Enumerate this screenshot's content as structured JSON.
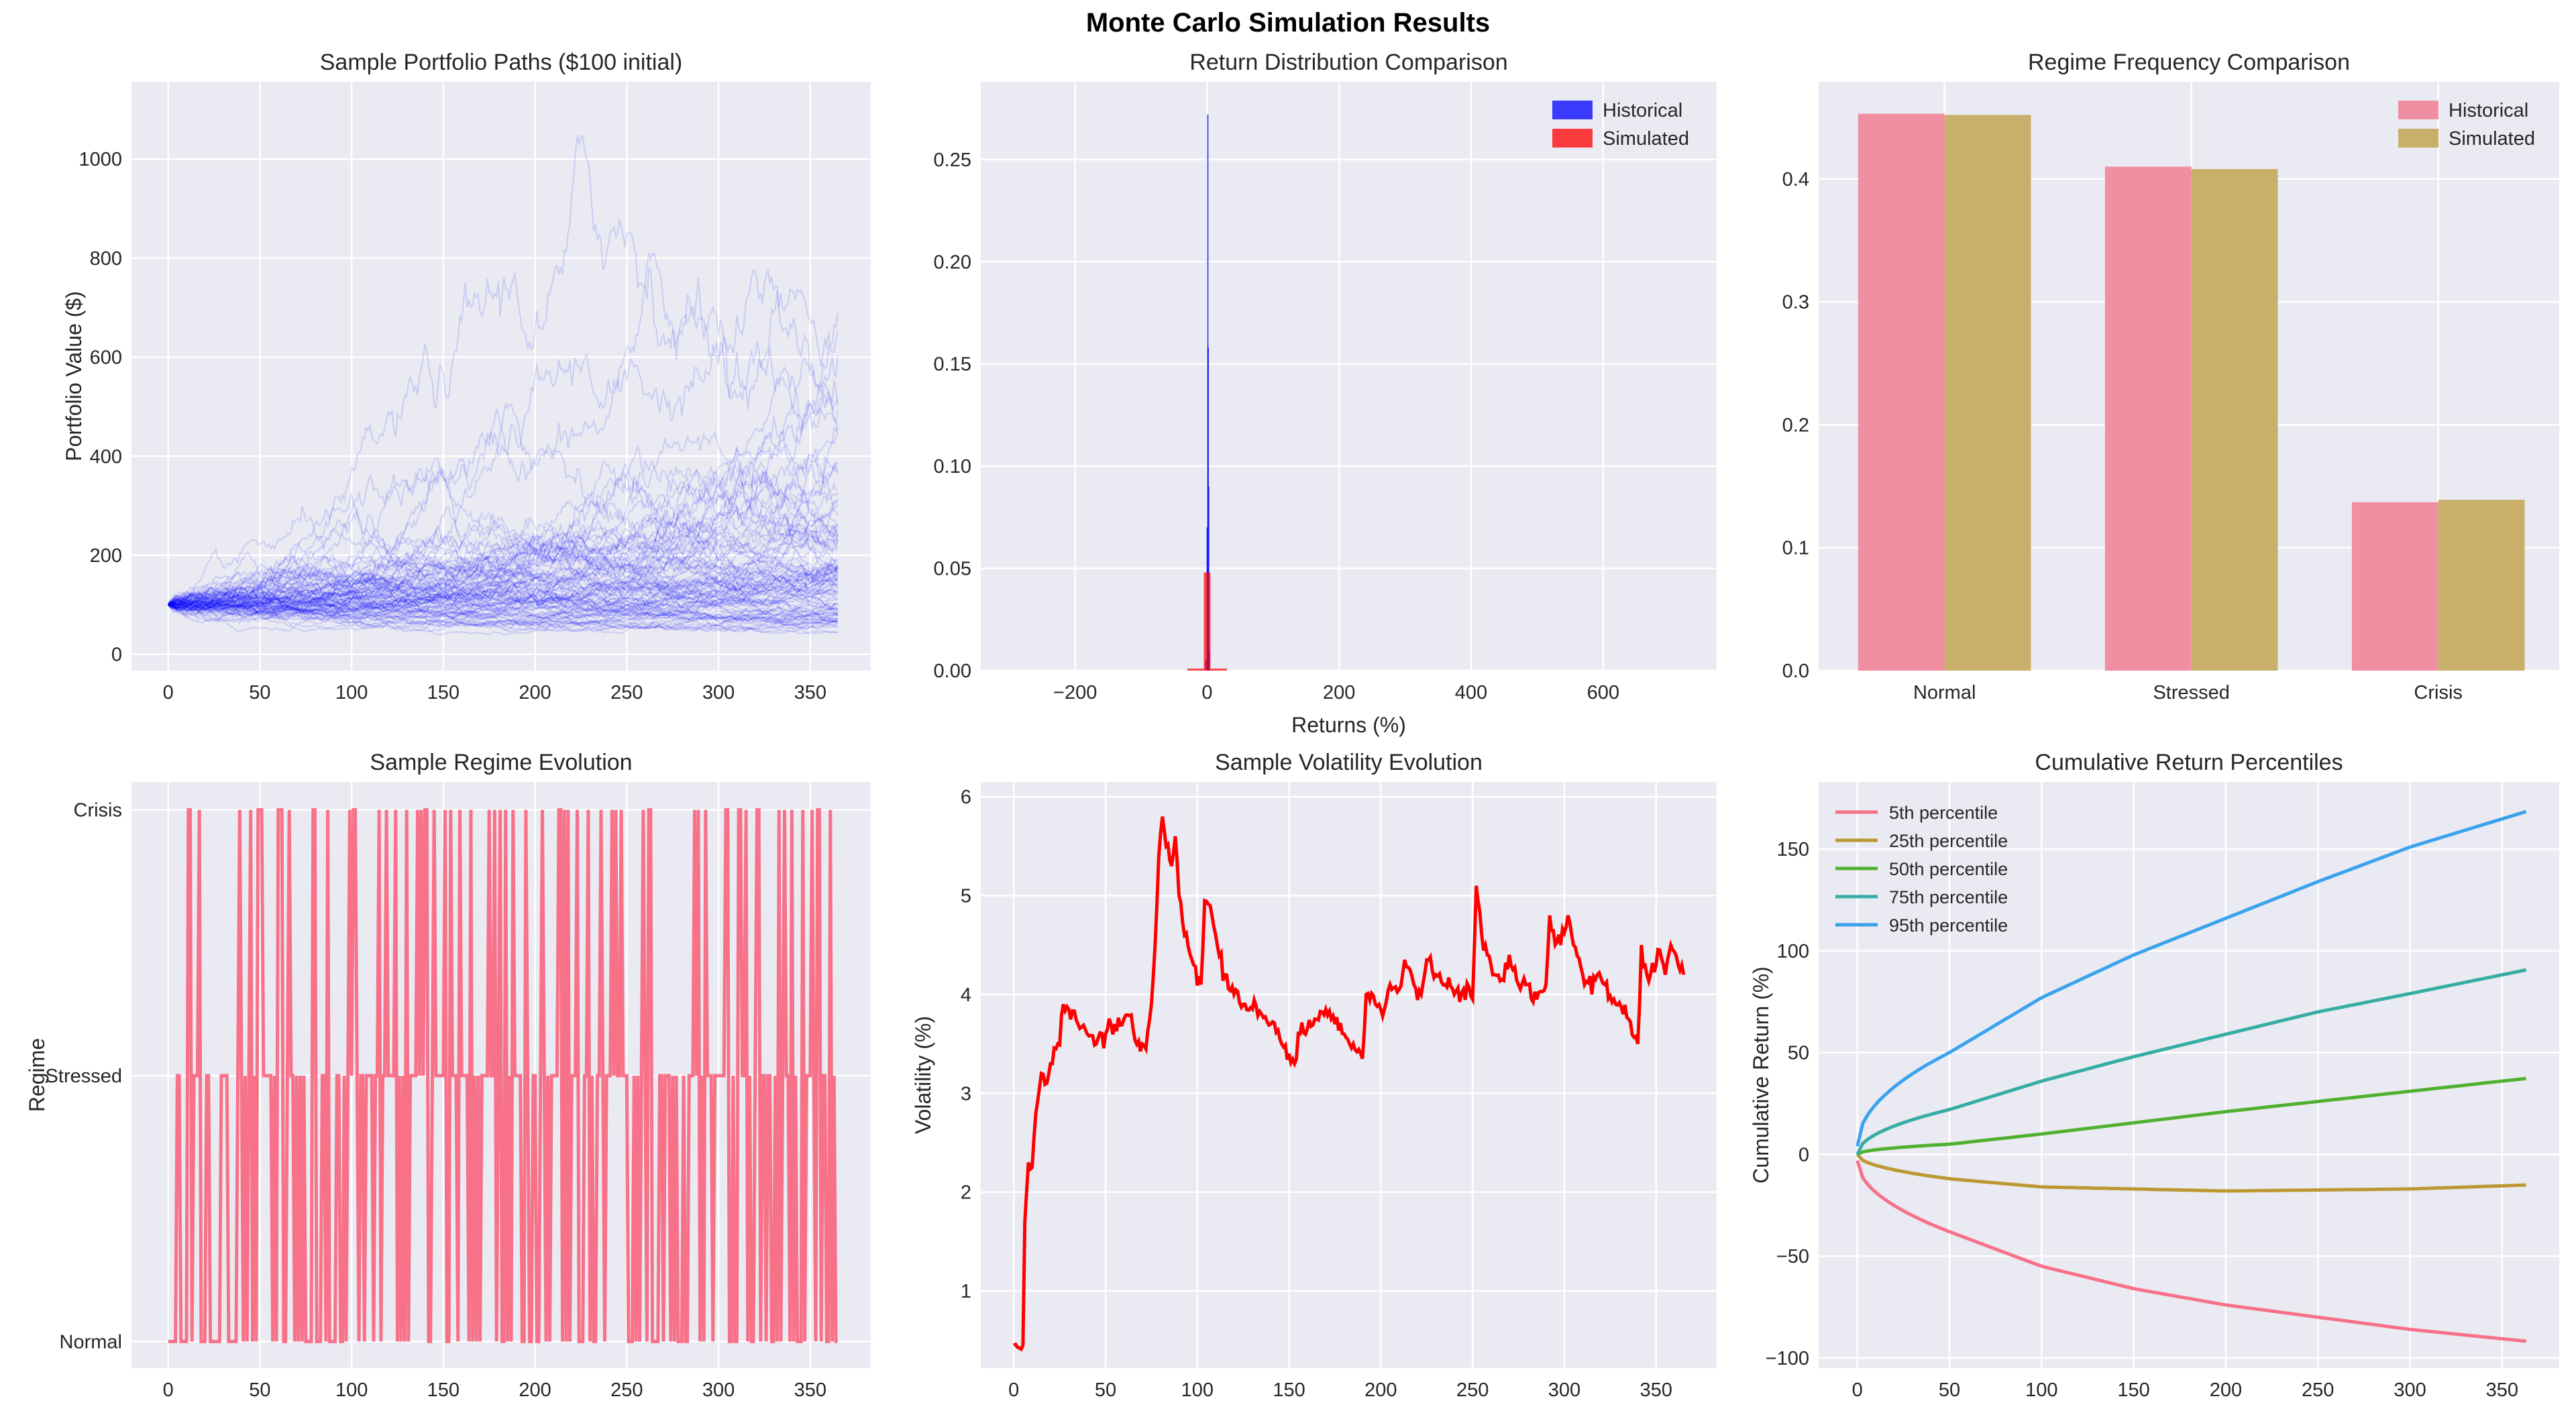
{
  "suptitle": "Monte Carlo Simulation Results",
  "colors": {
    "background": "#eaeaf2",
    "grid": "#ffffff",
    "paths": "#0000ff",
    "regime": "#f77189",
    "volatility": "#ff0000",
    "historical": "#0000ff",
    "simulated": "#ff0000",
    "bar_historical": "#f08fa2",
    "bar_simulated": "#c8b06a"
  },
  "chart_data": [
    {
      "id": "paths",
      "type": "line",
      "title": "Sample Portfolio Paths ($100 initial)",
      "xlabel": "",
      "ylabel": "Portfolio Value ($)",
      "xlim": [
        -20,
        383
      ],
      "ylim": [
        -33,
        1156
      ],
      "xticks": [
        0,
        50,
        100,
        150,
        200,
        250,
        300,
        350
      ],
      "yticks": [
        0,
        200,
        400,
        600,
        800,
        1000
      ],
      "series_summary": {
        "count": 100,
        "days": 365,
        "initial": 100
      },
      "grid": true
    },
    {
      "id": "returns",
      "type": "bar",
      "title": "Return Distribution Comparison",
      "xlabel": "Returns (%)",
      "ylabel": "",
      "xlim": [
        -343,
        772
      ],
      "ylim": [
        0,
        0.288
      ],
      "xticks": [
        -200,
        0,
        200,
        400,
        600
      ],
      "yticks": [
        0,
        0.05,
        0.1,
        0.15,
        0.2,
        0.25
      ],
      "ytick_labels": [
        "0.00",
        "0.05",
        "0.10",
        "0.15",
        "0.20",
        "0.25"
      ],
      "xtick_labels": [
        "−200",
        "0",
        "200",
        "400",
        "600"
      ],
      "legend": {
        "position": "top-right",
        "entries": [
          "Historical",
          "Simulated"
        ]
      },
      "series": [
        {
          "name": "Historical",
          "bins": [
            [
              -3,
              -1,
              0.005
            ],
            [
              -1,
              0,
              0.07
            ],
            [
              0,
              0.6,
              0.272
            ],
            [
              0.6,
              1.2,
              0.158
            ],
            [
              1.2,
              2,
              0.09
            ],
            [
              2,
              3,
              0.01
            ]
          ]
        },
        {
          "name": "Simulated",
          "bins": [
            [
              -30,
              -5,
              0.001
            ],
            [
              -5,
              5,
              0.048
            ],
            [
              5,
              30,
              0.001
            ]
          ]
        }
      ],
      "grid": true
    },
    {
      "id": "regime_freq",
      "type": "bar",
      "title": "Regime Frequency Comparison",
      "xlabel": "",
      "ylabel": "",
      "categories": [
        "Normal",
        "Stressed",
        "Crisis"
      ],
      "series": [
        {
          "name": "Historical",
          "values": [
            0.453,
            0.41,
            0.137
          ]
        },
        {
          "name": "Simulated",
          "values": [
            0.452,
            0.408,
            0.139
          ]
        }
      ],
      "xlim": [
        -0.51,
        2.49
      ],
      "ylim": [
        0,
        0.479
      ],
      "yticks": [
        0,
        0.1,
        0.2,
        0.3,
        0.4
      ],
      "ytick_labels": [
        "0.0",
        "0.1",
        "0.2",
        "0.3",
        "0.4"
      ],
      "legend": {
        "position": "top-right",
        "entries": [
          "Historical",
          "Simulated"
        ]
      },
      "grid": true
    },
    {
      "id": "regime_evo",
      "type": "line",
      "title": "Sample Regime Evolution",
      "xlabel": "",
      "ylabel": "Regime",
      "xlim": [
        -20,
        383
      ],
      "ylim": [
        -0.1,
        2.105
      ],
      "xticks": [
        0,
        50,
        100,
        150,
        200,
        250,
        300,
        350
      ],
      "yticks": [
        0,
        1,
        2
      ],
      "ytick_labels": [
        "Normal",
        "Stressed",
        "Crisis"
      ],
      "series_summary": {
        "days": 365
      },
      "grid": true
    },
    {
      "id": "volatility",
      "type": "line",
      "title": "Sample Volatility Evolution",
      "xlabel": "",
      "ylabel": "Volatility (%)",
      "xlim": [
        -18,
        383
      ],
      "ylim": [
        0.22,
        6.15
      ],
      "xticks": [
        0,
        50,
        100,
        150,
        200,
        250,
        300,
        350
      ],
      "yticks": [
        1,
        2,
        3,
        4,
        5,
        6
      ],
      "points": [
        [
          0,
          0.45
        ],
        [
          5,
          0.45
        ],
        [
          6,
          1.7
        ],
        [
          8,
          2.3
        ],
        [
          10,
          2.25
        ],
        [
          12,
          2.8
        ],
        [
          15,
          3.2
        ],
        [
          18,
          3.1
        ],
        [
          20,
          3.3
        ],
        [
          24,
          3.5
        ],
        [
          27,
          3.9
        ],
        [
          30,
          3.85
        ],
        [
          35,
          3.7
        ],
        [
          40,
          3.6
        ],
        [
          45,
          3.5
        ],
        [
          50,
          3.6
        ],
        [
          55,
          3.7
        ],
        [
          60,
          3.75
        ],
        [
          65,
          3.65
        ],
        [
          70,
          3.5
        ],
        [
          72,
          3.45
        ],
        [
          75,
          3.9
        ],
        [
          77,
          4.5
        ],
        [
          79,
          5.4
        ],
        [
          81,
          5.8
        ],
        [
          83,
          5.5
        ],
        [
          86,
          5.3
        ],
        [
          88,
          5.6
        ],
        [
          90,
          5.0
        ],
        [
          93,
          4.6
        ],
        [
          98,
          4.3
        ],
        [
          102,
          4.1
        ],
        [
          104,
          4.95
        ],
        [
          107,
          4.9
        ],
        [
          110,
          4.6
        ],
        [
          115,
          4.2
        ],
        [
          120,
          4.0
        ],
        [
          125,
          3.9
        ],
        [
          130,
          3.85
        ],
        [
          135,
          3.8
        ],
        [
          140,
          3.7
        ],
        [
          145,
          3.55
        ],
        [
          150,
          3.4
        ],
        [
          153,
          3.3
        ],
        [
          156,
          3.6
        ],
        [
          160,
          3.65
        ],
        [
          165,
          3.75
        ],
        [
          170,
          3.85
        ],
        [
          175,
          3.7
        ],
        [
          180,
          3.6
        ],
        [
          185,
          3.5
        ],
        [
          190,
          3.35
        ],
        [
          192,
          4.0
        ],
        [
          197,
          3.9
        ],
        [
          202,
          3.85
        ],
        [
          205,
          4.1
        ],
        [
          210,
          4.05
        ],
        [
          213,
          4.35
        ],
        [
          218,
          4.1
        ],
        [
          222,
          4.0
        ],
        [
          225,
          4.35
        ],
        [
          230,
          4.2
        ],
        [
          235,
          4.1
        ],
        [
          240,
          4.0
        ],
        [
          245,
          4.05
        ],
        [
          250,
          3.95
        ],
        [
          252,
          5.1
        ],
        [
          255,
          4.6
        ],
        [
          258,
          4.4
        ],
        [
          262,
          4.2
        ],
        [
          266,
          4.15
        ],
        [
          270,
          4.4
        ],
        [
          275,
          4.1
        ],
        [
          280,
          4.1
        ],
        [
          285,
          3.95
        ],
        [
          290,
          4.1
        ],
        [
          292,
          4.8
        ],
        [
          295,
          4.5
        ],
        [
          298,
          4.5
        ],
        [
          302,
          4.8
        ],
        [
          305,
          4.5
        ],
        [
          310,
          4.2
        ],
        [
          315,
          4.0
        ],
        [
          318,
          4.2
        ],
        [
          322,
          4.1
        ],
        [
          328,
          3.9
        ],
        [
          335,
          3.75
        ],
        [
          340,
          3.5
        ],
        [
          342,
          4.5
        ],
        [
          345,
          4.2
        ],
        [
          350,
          4.3
        ],
        [
          352,
          4.45
        ],
        [
          355,
          4.2
        ],
        [
          358,
          4.5
        ],
        [
          362,
          4.3
        ],
        [
          365,
          4.2
        ]
      ],
      "grid": true
    },
    {
      "id": "percentiles",
      "type": "line",
      "title": "Cumulative Return Percentiles",
      "xlabel": "",
      "ylabel": "Cumulative Return (%)",
      "xlim": [
        -21,
        381
      ],
      "ylim": [
        -105,
        183
      ],
      "xticks": [
        0,
        50,
        100,
        150,
        200,
        250,
        300,
        350
      ],
      "yticks": [
        -100,
        -50,
        0,
        50,
        100,
        150
      ],
      "ytick_labels": [
        "−100",
        "−50",
        "0",
        "50",
        "100",
        "150"
      ],
      "x": [
        0,
        50,
        100,
        150,
        200,
        250,
        300,
        365
      ],
      "series": [
        {
          "name": "5th percentile",
          "color": "#f77189",
          "values": [
            -3,
            -38,
            -55,
            -66,
            -74,
            -80,
            -86,
            -92
          ]
        },
        {
          "name": "25th percentile",
          "color": "#bb9832",
          "values": [
            0,
            -12,
            -16,
            -17,
            -18,
            -17.5,
            -17,
            -15
          ]
        },
        {
          "name": "50th percentile",
          "color": "#50b131",
          "values": [
            0,
            5,
            10,
            15.5,
            21,
            26,
            31,
            37.5
          ]
        },
        {
          "name": "75th percentile",
          "color": "#36ada4",
          "values": [
            0,
            22,
            36,
            48,
            59,
            70,
            79,
            91
          ]
        },
        {
          "name": "95th percentile",
          "color": "#3ba3ec",
          "values": [
            4,
            50,
            77,
            98,
            116,
            134,
            151,
            169
          ]
        }
      ],
      "legend": {
        "position": "top-left"
      },
      "grid": true
    }
  ]
}
